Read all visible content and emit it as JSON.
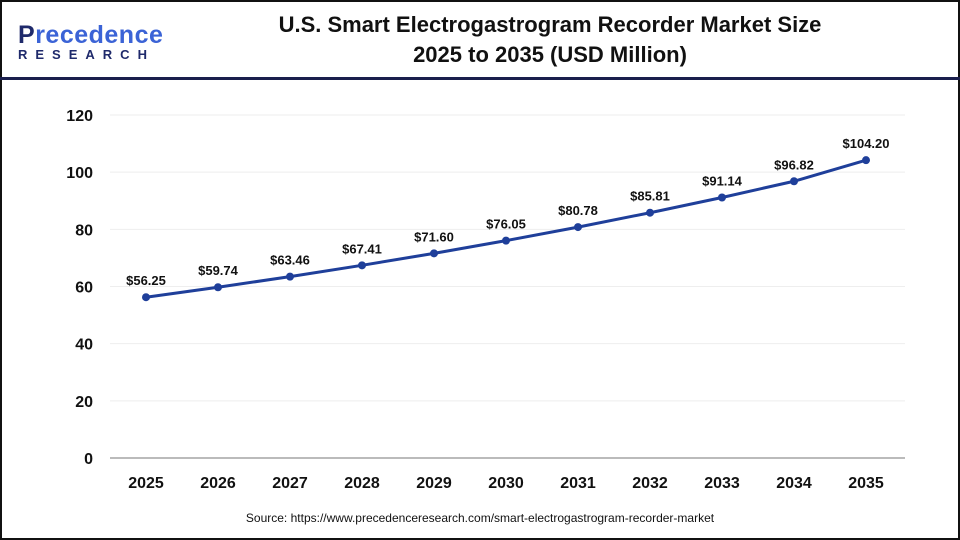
{
  "header": {
    "logo_top": "Precedence",
    "logo_bottom": "RESEARCH",
    "title_line1": "U.S. Smart Electrogastrogram Recorder Market Size",
    "title_line2": "2025 to 2035 (USD Million)"
  },
  "source": "Source: https://www.precedenceresearch.com/smart-electrogastrogram-recorder-market",
  "chart_data": {
    "type": "line",
    "title": "U.S. Smart Electrogastrogram Recorder Market Size 2025 to 2035 (USD Million)",
    "categories": [
      "2025",
      "2026",
      "2027",
      "2028",
      "2029",
      "2030",
      "2031",
      "2032",
      "2033",
      "2034",
      "2035"
    ],
    "values": [
      56.25,
      59.74,
      63.46,
      67.41,
      71.6,
      76.05,
      80.78,
      85.81,
      91.14,
      96.82,
      104.2
    ],
    "labels": [
      "$56.25",
      "$59.74",
      "$63.46",
      "$67.41",
      "$71.60",
      "$76.05",
      "$80.78",
      "$85.81",
      "$91.14",
      "$96.82",
      "$104.20"
    ],
    "yticks": [
      "0",
      "20",
      "40",
      "60",
      "80",
      "100",
      "120"
    ],
    "ylim": [
      0,
      120
    ],
    "grid": true,
    "line_color": "#1f3f9a",
    "xlabel": "",
    "ylabel": ""
  }
}
